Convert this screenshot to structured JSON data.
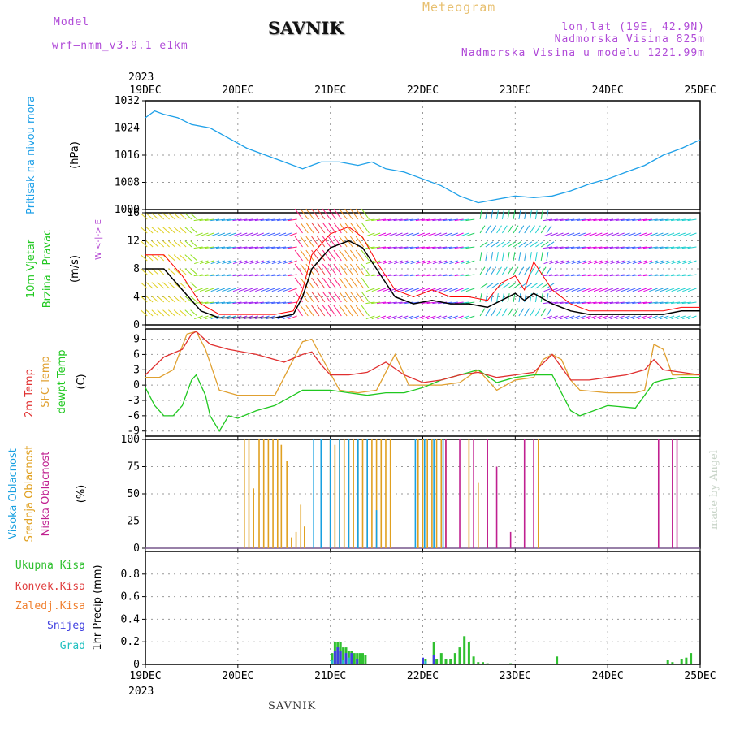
{
  "header": {
    "model_label": "Model",
    "model_name": "wrf—nmm_v3.9.1  e1km",
    "title": "SAVNIK",
    "meteogram": "Meteogram",
    "location": "lon,lat (19E, 42.9N)",
    "altitude": "Nadmorska Visina 825m",
    "model_altitude": "Nadmorska Visina u modelu 1221.99m"
  },
  "footer": {
    "title": "SAVNIK",
    "credit": "made by Angel"
  },
  "time_axis": {
    "year": "2023",
    "labels": [
      "19DEC",
      "20DEC",
      "21DEC",
      "22DEC",
      "23DEC",
      "24DEC",
      "25DEC"
    ]
  },
  "colors": {
    "pressure": "#1ea0e8",
    "temp2m": "#e03030",
    "sfc": "#e0a030",
    "dewpt": "#20c820",
    "high_cloud": "#18a0e0",
    "mid_cloud": "#e0a020",
    "low_cloud": "#c02090",
    "precip_total": "#30c030",
    "precip_conv": "#e04040",
    "precip_snow": "#4040e0",
    "precip_grad": "#20c0c0",
    "wind_speed": "#000000",
    "wind_max": "#ff0000",
    "compass": "#b040d0"
  },
  "chart_data": [
    {
      "type": "line",
      "ylabel": "Pritisak na nivou mora",
      "unit": "(hPa)",
      "ylim": [
        1000,
        1032
      ],
      "yticks": [
        1000,
        1008,
        1016,
        1024,
        1032
      ],
      "series": [
        {
          "x": [
            0,
            0.1,
            0.2,
            0.35,
            0.5,
            0.7,
            0.9,
            1.1,
            1.3,
            1.5,
            1.7,
            1.8,
            1.9,
            2.1,
            2.3,
            2.45,
            2.6,
            2.8,
            3.0,
            3.2,
            3.4,
            3.6,
            3.8,
            4.0,
            4.2,
            4.4,
            4.6,
            4.8,
            5.0,
            5.2,
            5.4,
            5.6,
            5.8,
            6.0
          ],
          "values": [
            1027,
            1029,
            1028,
            1027,
            1025,
            1024,
            1021,
            1018,
            1016,
            1014,
            1012,
            1013,
            1014,
            1014,
            1013,
            1014,
            1012,
            1011,
            1009,
            1007,
            1004,
            1002,
            1003,
            1004,
            1003.5,
            1004,
            1005.5,
            1007.5,
            1009,
            1011,
            1013,
            1016,
            1018,
            1020.5
          ]
        }
      ]
    },
    {
      "type": "line",
      "ylabel": "10m Vjetar Brzina i Pravac",
      "unit": "(m/s)",
      "ylim": [
        0,
        16
      ],
      "yticks": [
        0,
        4,
        8,
        12,
        16
      ],
      "compass": "W <-|-> E",
      "series": [
        {
          "name": "speed",
          "x": [
            0,
            0.2,
            0.4,
            0.6,
            0.8,
            1.0,
            1.2,
            1.4,
            1.6,
            1.7,
            1.8,
            2.0,
            2.2,
            2.35,
            2.5,
            2.7,
            2.9,
            3.1,
            3.3,
            3.5,
            3.7,
            3.85,
            4.0,
            4.1,
            4.2,
            4.4,
            4.6,
            4.8,
            5.0,
            5.2,
            5.4,
            5.6,
            5.8,
            6.0
          ],
          "values": [
            8,
            8,
            5,
            2,
            1,
            1,
            1,
            1,
            1.5,
            4,
            8,
            11,
            12,
            11,
            8,
            4,
            3,
            3.5,
            3,
            3,
            2.5,
            3.5,
            4.5,
            3.5,
            4.5,
            3,
            2,
            1.5,
            1.5,
            1.5,
            1.5,
            1.5,
            2,
            2
          ]
        },
        {
          "name": "max",
          "x": [
            0,
            0.2,
            0.4,
            0.6,
            0.8,
            1.0,
            1.2,
            1.4,
            1.6,
            1.7,
            1.8,
            2.0,
            2.2,
            2.35,
            2.5,
            2.7,
            2.9,
            3.1,
            3.3,
            3.5,
            3.7,
            3.85,
            4.0,
            4.1,
            4.2,
            4.4,
            4.6,
            4.8,
            5.0,
            5.2,
            5.4,
            5.6,
            5.8,
            6.0
          ],
          "values": [
            10,
            10,
            7,
            3,
            1.5,
            1.5,
            1.5,
            1.5,
            2,
            5,
            10,
            13,
            14,
            12.5,
            9,
            5,
            4,
            5,
            4,
            4,
            3.5,
            6,
            7,
            5,
            9,
            5,
            3,
            2,
            2,
            2,
            2,
            2,
            2.5,
            2.5
          ]
        }
      ]
    },
    {
      "type": "line",
      "ylabel": "2m Temp / SFC Temp / dewpt Temp",
      "unit": "(C)",
      "ylim": [
        -10,
        11
      ],
      "yticks": [
        -9,
        -6,
        -3,
        0,
        3,
        6,
        9
      ],
      "series": [
        {
          "name": "2m Temp",
          "x": [
            0,
            0.2,
            0.4,
            0.5,
            0.55,
            0.7,
            0.9,
            1.2,
            1.5,
            1.7,
            1.8,
            1.9,
            2.0,
            2.2,
            2.4,
            2.6,
            2.8,
            3.0,
            3.2,
            3.4,
            3.6,
            3.8,
            4.0,
            4.2,
            4.4,
            4.6,
            4.7,
            4.8,
            5.0,
            5.2,
            5.4,
            5.5,
            5.6,
            5.8,
            6.0
          ],
          "values": [
            2,
            5.5,
            7,
            10,
            10.5,
            8,
            7,
            6,
            4.5,
            6,
            6.5,
            4,
            2,
            2,
            2.5,
            4.5,
            2,
            0.5,
            1,
            2,
            2.5,
            1.5,
            2,
            2.5,
            6,
            1,
            1,
            1,
            1.5,
            2,
            3,
            5,
            3,
            2.5,
            2
          ]
        },
        {
          "name": "SFC Temp",
          "x": [
            0,
            0.15,
            0.3,
            0.45,
            0.55,
            0.65,
            0.8,
            1.0,
            1.2,
            1.4,
            1.6,
            1.7,
            1.8,
            1.95,
            2.1,
            2.3,
            2.5,
            2.7,
            2.85,
            3.0,
            3.2,
            3.4,
            3.6,
            3.8,
            4.0,
            4.2,
            4.3,
            4.4,
            4.5,
            4.6,
            4.7,
            5.0,
            5.3,
            5.4,
            5.5,
            5.6,
            5.7,
            6.0
          ],
          "values": [
            1.5,
            1.5,
            3,
            10,
            10.5,
            7,
            -1,
            -2,
            -2,
            -2,
            5,
            8.5,
            9,
            4,
            -1,
            -1.5,
            -1,
            6,
            0,
            0,
            0,
            0.5,
            3,
            -1,
            1,
            1.5,
            5,
            6,
            5,
            1,
            -1,
            -1.5,
            -1.5,
            -1,
            8,
            7,
            2,
            2
          ]
        },
        {
          "name": "dewpt Temp",
          "x": [
            0,
            0.1,
            0.2,
            0.3,
            0.4,
            0.5,
            0.55,
            0.65,
            0.7,
            0.8,
            0.9,
            1.0,
            1.2,
            1.4,
            1.6,
            1.7,
            1.8,
            2.0,
            2.2,
            2.4,
            2.6,
            2.8,
            3.0,
            3.2,
            3.4,
            3.6,
            3.8,
            4.0,
            4.2,
            4.4,
            4.6,
            4.7,
            5.0,
            5.3,
            5.5,
            5.6,
            5.8,
            6.0
          ],
          "values": [
            -0.5,
            -4,
            -6,
            -6,
            -4,
            1,
            2,
            -2,
            -6,
            -9,
            -6,
            -6.5,
            -5,
            -4,
            -2,
            -1,
            -1,
            -1,
            -1.5,
            -2,
            -1.5,
            -1.5,
            -0.5,
            1,
            2,
            3,
            0.5,
            1.5,
            2,
            2,
            -5,
            -6,
            -4,
            -4.5,
            0.5,
            1,
            1.5,
            1.5
          ]
        }
      ]
    },
    {
      "type": "bar",
      "ylabel": "Visoka Oblacnost / Srednja Oblacnost / Niska Oblacnost",
      "unit": "(%)",
      "ylim": [
        0,
        100
      ],
      "yticks": [
        0,
        25,
        50,
        75,
        100
      ],
      "series": [
        {
          "name": "Srednja Oblacnost",
          "x": [
            1.07,
            1.12,
            1.17,
            1.23,
            1.28,
            1.33,
            1.38,
            1.43,
            1.47,
            1.53,
            1.58,
            1.63,
            1.68,
            1.72,
            2.0,
            2.05,
            2.1,
            2.15,
            2.2,
            2.25,
            2.3,
            2.35,
            2.4,
            2.45,
            2.5,
            2.55,
            2.6,
            2.65,
            2.95,
            3.0,
            3.05,
            3.1,
            3.15,
            3.2,
            3.25,
            3.5,
            3.6,
            3.7,
            4.25
          ],
          "values": [
            100,
            100,
            55,
            100,
            100,
            100,
            100,
            100,
            95,
            80,
            10,
            15,
            40,
            20,
            100,
            95,
            100,
            100,
            100,
            100,
            100,
            100,
            100,
            100,
            100,
            100,
            100,
            100,
            100,
            100,
            100,
            100,
            100,
            100,
            100,
            100,
            60,
            20,
            100
          ]
        },
        {
          "name": "Visoka Oblacnost",
          "x": [
            1.82,
            1.9,
            2.0,
            2.1,
            2.2,
            2.3,
            2.4,
            2.5,
            2.92,
            3.02,
            3.12,
            3.22
          ],
          "values": [
            100,
            100,
            100,
            100,
            100,
            100,
            100,
            35,
            100,
            100,
            100,
            100
          ]
        },
        {
          "name": "Niska Oblacnost",
          "x": [
            3.25,
            3.4,
            3.55,
            3.7,
            3.8,
            3.95,
            4.1,
            4.2,
            5.55,
            5.7,
            5.75
          ],
          "values": [
            100,
            100,
            100,
            100,
            75,
            15,
            100,
            100,
            100,
            100,
            100
          ]
        }
      ]
    },
    {
      "type": "bar",
      "ylabel": "1hr Precip (mm)",
      "ylim": [
        0,
        1.0
      ],
      "yticks": [
        0,
        0.2,
        0.4,
        0.6,
        0.8
      ],
      "legend": [
        "Ukupna Kisa",
        "Konvek.Kisa",
        "Zaledj.Kisa",
        "Snijeg",
        "Grad"
      ],
      "series": [
        {
          "name": "Ukupna Kisa",
          "x": [
            2.02,
            2.05,
            2.08,
            2.11,
            2.14,
            2.17,
            2.2,
            2.23,
            2.26,
            2.29,
            2.32,
            2.35,
            2.38,
            3.03,
            3.12,
            3.15,
            3.2,
            3.25,
            3.3,
            3.35,
            3.4,
            3.45,
            3.5,
            3.55,
            3.6,
            3.65,
            3.7,
            3.95,
            4.45,
            5.65,
            5.7,
            5.8,
            5.85,
            5.9
          ],
          "values": [
            0.1,
            0.2,
            0.2,
            0.2,
            0.15,
            0.15,
            0.12,
            0.12,
            0.1,
            0.1,
            0.1,
            0.1,
            0.08,
            0.05,
            0.2,
            0.05,
            0.1,
            0.05,
            0.05,
            0.1,
            0.15,
            0.25,
            0.2,
            0.07,
            0.02,
            0.02,
            0.01,
            0.01,
            0.07,
            0.04,
            0.02,
            0.05,
            0.06,
            0.1
          ]
        },
        {
          "name": "Snijeg",
          "x": [
            2.05,
            2.08,
            2.11,
            2.17,
            2.23,
            2.29,
            3.0,
            3.12
          ],
          "values": [
            0.12,
            0.15,
            0.12,
            0.1,
            0.1,
            0.05,
            0.06,
            0.08
          ]
        },
        {
          "name": "Grad",
          "x": [
            2.02,
            2.14,
            2.2,
            3.03
          ],
          "values": [
            0.04,
            0.04,
            0.06,
            0.03
          ]
        }
      ]
    }
  ]
}
